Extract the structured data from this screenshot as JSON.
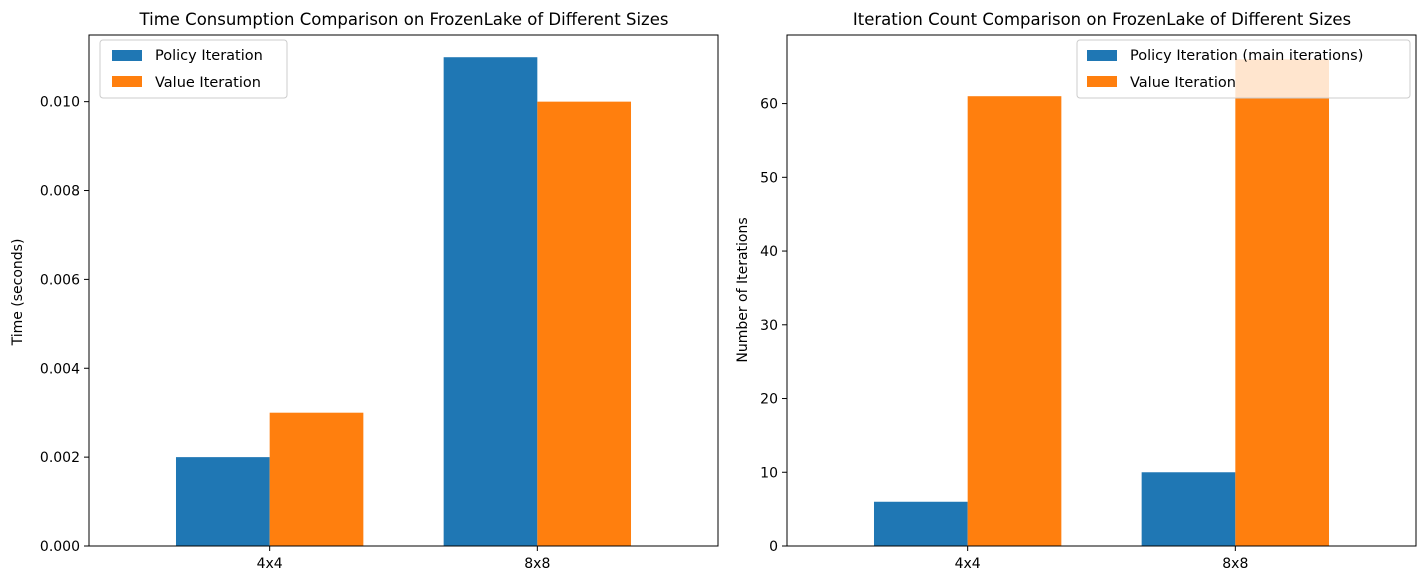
{
  "chart_data": [
    {
      "type": "bar",
      "title": "Time Consumption Comparison on FrozenLake of Different Sizes",
      "xlabel": "",
      "ylabel": "Time (seconds)",
      "categories": [
        "4x4",
        "8x8"
      ],
      "series": [
        {
          "name": "Policy Iteration",
          "values": [
            0.002,
            0.011
          ],
          "color": "#1f77b4"
        },
        {
          "name": "Value Iteration",
          "values": [
            0.003,
            0.01
          ],
          "color": "#ff7f0e"
        }
      ],
      "ylim": [
        0,
        0.0115
      ],
      "yticks": [
        0.0,
        0.002,
        0.004,
        0.006,
        0.008,
        0.01
      ],
      "ytick_labels": [
        "0.000",
        "0.002",
        "0.004",
        "0.006",
        "0.008",
        "0.010"
      ],
      "legend": "upper left",
      "grid": false
    },
    {
      "type": "bar",
      "title": "Iteration Count Comparison on FrozenLake of Different Sizes",
      "xlabel": "",
      "ylabel": "Number of Iterations",
      "categories": [
        "4x4",
        "8x8"
      ],
      "series": [
        {
          "name": "Policy Iteration (main iterations)",
          "values": [
            6,
            10
          ],
          "color": "#1f77b4"
        },
        {
          "name": "Value Iteration",
          "values": [
            61,
            66
          ],
          "color": "#ff7f0e"
        }
      ],
      "ylim": [
        0,
        69.3
      ],
      "yticks": [
        0,
        10,
        20,
        30,
        40,
        50,
        60
      ],
      "ytick_labels": [
        "0",
        "10",
        "20",
        "30",
        "40",
        "50",
        "60"
      ],
      "legend": "upper right",
      "grid": false
    }
  ]
}
